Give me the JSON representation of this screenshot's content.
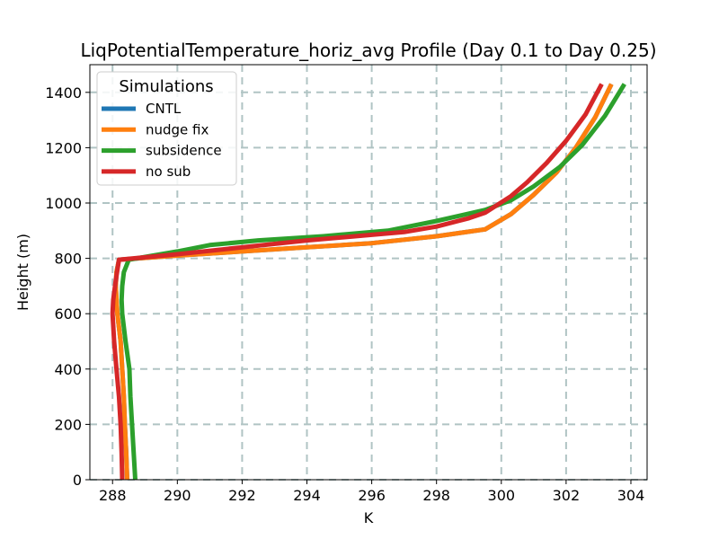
{
  "chart_data": {
    "type": "line",
    "title": "LiqPotentialTemperature_horiz_avg Profile (Day 0.1 to Day 0.25)",
    "xlabel": "K",
    "ylabel": "Height (m)",
    "xlim": [
      287.3,
      304.5
    ],
    "ylim": [
      0,
      1500
    ],
    "xticks": [
      288,
      290,
      292,
      294,
      296,
      298,
      300,
      302,
      304
    ],
    "yticks": [
      0,
      200,
      400,
      600,
      800,
      1000,
      1200,
      1400
    ],
    "grid": true,
    "legend": {
      "title": "Simulations",
      "placement": "upper-left"
    },
    "series": [
      {
        "name": "CNTL",
        "color": "#1f77b4",
        "x": [
          288.45,
          288.42,
          288.38,
          288.35,
          288.3,
          288.25,
          288.2,
          288.15,
          288.12,
          288.1,
          288.12,
          288.2,
          290.0,
          292.0,
          294.0,
          296.0,
          298.0,
          299.5,
          300.3,
          301.0,
          301.7,
          302.3,
          302.9,
          303.4
        ],
        "y": [
          0,
          100,
          200,
          300,
          400,
          500,
          550,
          600,
          650,
          700,
          750,
          795,
          810,
          825,
          840,
          855,
          880,
          905,
          960,
          1030,
          1110,
          1200,
          1310,
          1430
        ]
      },
      {
        "name": "nudge fix",
        "color": "#ff7f0e",
        "x": [
          288.45,
          288.42,
          288.38,
          288.35,
          288.3,
          288.25,
          288.2,
          288.15,
          288.12,
          288.1,
          288.12,
          288.2,
          290.0,
          292.0,
          294.0,
          296.0,
          298.0,
          299.5,
          300.3,
          301.0,
          301.7,
          302.3,
          302.9,
          303.4
        ],
        "y": [
          0,
          100,
          200,
          300,
          400,
          500,
          550,
          600,
          650,
          700,
          750,
          795,
          810,
          825,
          840,
          855,
          880,
          905,
          960,
          1030,
          1110,
          1200,
          1310,
          1430
        ]
      },
      {
        "name": "subsidence",
        "color": "#2ca02c",
        "x": [
          288.7,
          288.65,
          288.6,
          288.55,
          288.52,
          288.4,
          288.3,
          288.28,
          288.3,
          288.35,
          288.5,
          290.0,
          291.0,
          292.5,
          294.5,
          296.5,
          298.0,
          299.5,
          300.3,
          301.0,
          301.8,
          302.5,
          303.2,
          303.8
        ],
        "y": [
          0,
          100,
          200,
          300,
          400,
          500,
          600,
          650,
          700,
          750,
          795,
          825,
          848,
          865,
          880,
          900,
          935,
          975,
          1010,
          1060,
          1130,
          1210,
          1315,
          1430
        ]
      },
      {
        "name": "no sub",
        "color": "#d62728",
        "x": [
          288.3,
          288.28,
          288.25,
          288.2,
          288.12,
          288.05,
          288.0,
          288.02,
          288.1,
          288.2,
          290.0,
          292.0,
          294.0,
          296.0,
          297.0,
          298.0,
          299.0,
          299.5,
          300.3,
          300.8,
          301.4,
          302.0,
          302.6,
          303.1
        ],
        "y": [
          0,
          100,
          200,
          300,
          400,
          500,
          600,
          650,
          720,
          795,
          815,
          840,
          865,
          885,
          895,
          915,
          945,
          965,
          1025,
          1075,
          1145,
          1225,
          1320,
          1430
        ]
      }
    ]
  }
}
